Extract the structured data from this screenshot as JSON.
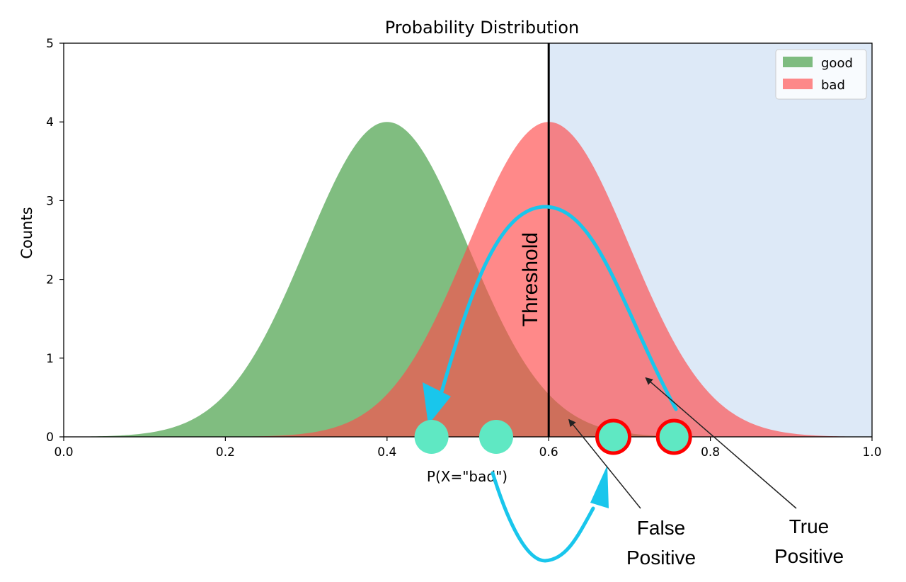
{
  "chart_data": {
    "type": "area",
    "title": "Probability Distribution",
    "xlabel": "P(X=\"bad\")",
    "ylabel": "Counts",
    "xlim": [
      0.0,
      1.0
    ],
    "ylim": [
      0,
      5
    ],
    "x_ticks": [
      "0.0",
      "0.2",
      "0.4",
      "0.6",
      "0.8",
      "1.0"
    ],
    "y_ticks": [
      "0",
      "1",
      "2",
      "3",
      "4",
      "5"
    ],
    "grid": false,
    "legend_position": "top-right",
    "series": [
      {
        "name": "good",
        "distribution": "normal",
        "mean": 0.4,
        "peak": 4.0,
        "std": 0.1,
        "color": "#3c9a3c",
        "alpha": 0.65
      },
      {
        "name": "bad",
        "distribution": "normal",
        "mean": 0.6,
        "peak": 4.0,
        "std": 0.1,
        "color": "#ff4a4a",
        "alpha": 0.65
      }
    ],
    "threshold": {
      "x": 0.6,
      "label": "Threshold",
      "shaded_region": [
        0.6,
        1.0
      ],
      "shade_color": "#c6dbf1"
    },
    "points": [
      {
        "x": 0.455,
        "y": 0,
        "highlighted": false
      },
      {
        "x": 0.535,
        "y": 0,
        "highlighted": false
      },
      {
        "x": 0.68,
        "y": 0,
        "highlighted": true
      },
      {
        "x": 0.755,
        "y": 0,
        "highlighted": true
      }
    ],
    "annotations": [
      {
        "text": "False\nPositive",
        "points_to": {
          "x": 0.625,
          "y": 0.22
        }
      },
      {
        "text": "True\nPositive",
        "points_to": {
          "x": 0.72,
          "y": 0.75
        }
      }
    ]
  },
  "colors": {
    "arrow": "#19c6ec",
    "point_fill": "#5fe8c3",
    "point_ring": "#ff0000",
    "threshold_line": "#000000"
  }
}
